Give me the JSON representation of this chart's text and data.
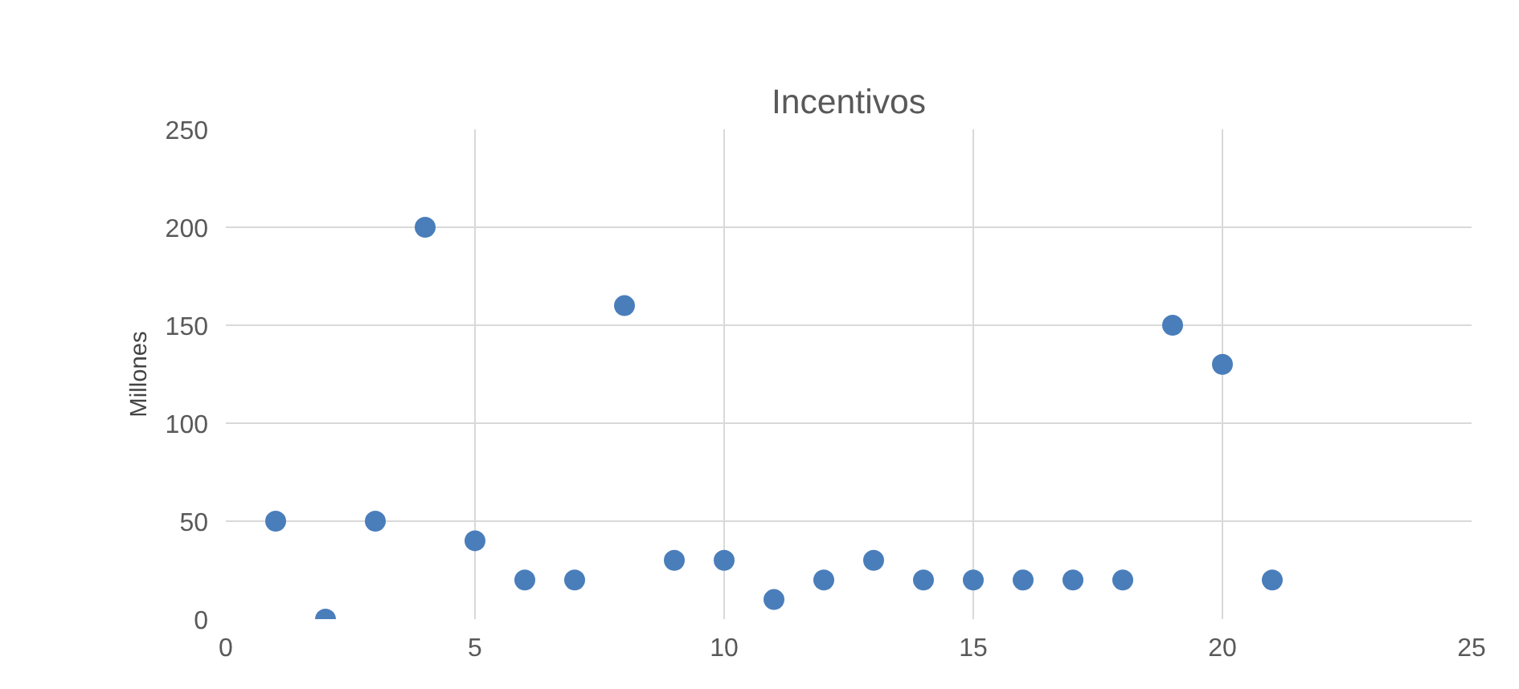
{
  "chart_data": {
    "type": "scatter",
    "title": "Incentivos",
    "ylabel": "Millones",
    "x": [
      1,
      2,
      3,
      4,
      5,
      6,
      7,
      8,
      9,
      10,
      11,
      12,
      13,
      14,
      15,
      16,
      17,
      18,
      19,
      20,
      21
    ],
    "values": [
      50,
      0,
      50,
      200,
      40,
      20,
      20,
      160,
      30,
      30,
      10,
      20,
      30,
      20,
      20,
      20,
      20,
      20,
      150,
      130,
      20
    ],
    "color": "#4a7ebb",
    "marker": "circle",
    "xlim": [
      0,
      25
    ],
    "xticks": [
      0,
      5,
      10,
      15,
      20,
      25
    ],
    "ylim": [
      0,
      250
    ],
    "yticks": [
      0,
      50,
      100,
      150,
      200,
      250
    ],
    "grid": true
  }
}
